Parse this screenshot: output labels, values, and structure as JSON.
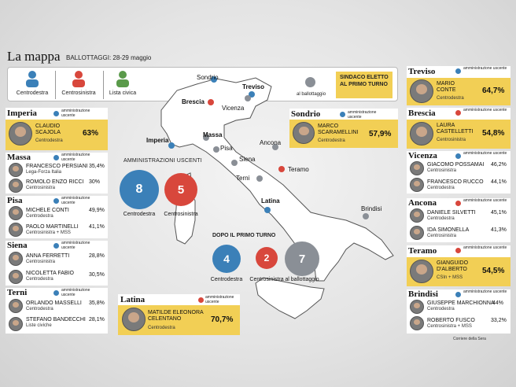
{
  "header": {
    "title": "La mappa",
    "subtitle": "BALLOTTAGGI: 28-29 maggio"
  },
  "legend": {
    "items": [
      {
        "label": "Centrodestra",
        "color": "#3b80b8"
      },
      {
        "label": "Centrosinistra",
        "color": "#d8473c"
      },
      {
        "label": "Lista civica",
        "color": "#5a9a4a"
      }
    ],
    "ballot_label": "al ballottaggio",
    "winner_box": "SINDACO ELETTO AL PRIMO TURNO"
  },
  "colors": {
    "centrodestra": "#3b80b8",
    "centrosinistra": "#d8473c",
    "ballottaggio": "#8a8f96",
    "highlight": "#f2cf55"
  },
  "map_labels": [
    "Sondrio",
    "Treviso",
    "Brescia",
    "Vicenza",
    "Imperia",
    "Massa",
    "Pisa",
    "Ancona",
    "Siena",
    "Teramo",
    "Terni",
    "Latina",
    "Brindisi"
  ],
  "stats": {
    "uscenti_title": "AMMINISTRAZIONI USCENTI",
    "uscenti": [
      {
        "value": "8",
        "label": "Centrodestra"
      },
      {
        "value": "5",
        "label": "Centrosinistra"
      }
    ],
    "primo_title": "DOPO IL PRIMO TURNO",
    "primo": [
      {
        "value": "4",
        "label": "Centrodestra"
      },
      {
        "value": "2",
        "label": "Centrosinistra"
      },
      {
        "value": "7",
        "label": "al ballottaggio"
      }
    ]
  },
  "admin_label": "amministrazione uscente",
  "left_cards": {
    "imperia": {
      "city": "Imperia",
      "name": "CLAUDIO SCAJOLA",
      "party": "Centrodestra",
      "pct": "63%"
    },
    "massa": {
      "city": "Massa",
      "c1": {
        "name": "FRANCESCO PERSIANI",
        "party": "Lega-Forza Italia",
        "pct": "35,4%"
      },
      "c2": {
        "name": "ROMOLO ENZO RICCI",
        "party": "Centrosinistra",
        "pct": "30%"
      }
    },
    "pisa": {
      "city": "Pisa",
      "c1": {
        "name": "MICHELE CONTI",
        "party": "Centrodestra",
        "pct": "49,9%"
      },
      "c2": {
        "name": "PAOLO MARTINELLI",
        "party": "Centrosinistra + MSS",
        "pct": "41,1%"
      }
    },
    "siena": {
      "city": "Siena",
      "c1": {
        "name": "ANNA FERRETTI",
        "party": "Centrosinistra",
        "pct": "28,8%"
      },
      "c2": {
        "name": "NICOLETTA FABIO",
        "party": "Centrodestra",
        "pct": "30,5%"
      }
    },
    "terni": {
      "city": "Terni",
      "c1": {
        "name": "ORLANDO MASSELLI",
        "party": "Centrodestra",
        "pct": "35,8%"
      },
      "c2": {
        "name": "STEFANO BANDECCHI",
        "party": "Liste civiche",
        "pct": "28,1%"
      }
    }
  },
  "center_cards": {
    "sondrio": {
      "city": "Sondrio",
      "name": "MARCO SCARAMELLINI",
      "party": "Centrodestra",
      "pct": "57,9%"
    },
    "latina": {
      "city": "Latina",
      "name": "MATILDE ELEONORA CELENTANO",
      "party": "Centrodestra",
      "pct": "70,7%"
    }
  },
  "right_cards": {
    "treviso": {
      "city": "Treviso",
      "name": "MARIO CONTE",
      "party": "Centrodestra",
      "pct": "64,7%"
    },
    "brescia": {
      "city": "Brescia",
      "name": "LAURA CASTELLETTI",
      "party": "Centrosinistra",
      "pct": "54,8%"
    },
    "vicenza": {
      "city": "Vicenza",
      "c1": {
        "name": "GIACOMO POSSAMAI",
        "party": "Centrosinistra",
        "pct": "46,2%"
      },
      "c2": {
        "name": "FRANCESCO RUCCO",
        "party": "Centrodestra",
        "pct": "44,1%"
      }
    },
    "ancona": {
      "city": "Ancona",
      "c1": {
        "name": "DANIELE SILVETTI",
        "party": "Centrodestra",
        "pct": "45,1%"
      },
      "c2": {
        "name": "IDA SIMONELLA",
        "party": "Centrosinistra",
        "pct": "41,3%"
      }
    },
    "teramo": {
      "city": "Teramo",
      "name": "GIANGUIDO D'ALBERTO",
      "party": "CSIn + MSS",
      "pct": "54,5%"
    },
    "brindisi": {
      "city": "Brindisi",
      "c1": {
        "name": "GIUSEPPE MARCHIONNA",
        "party": "Centrodestra",
        "pct": "44%"
      },
      "c2": {
        "name": "ROBERTO FUSCO",
        "party": "Centrosinistra + MSS",
        "pct": "33,2%"
      }
    }
  },
  "credit": "Corriere della Sera"
}
